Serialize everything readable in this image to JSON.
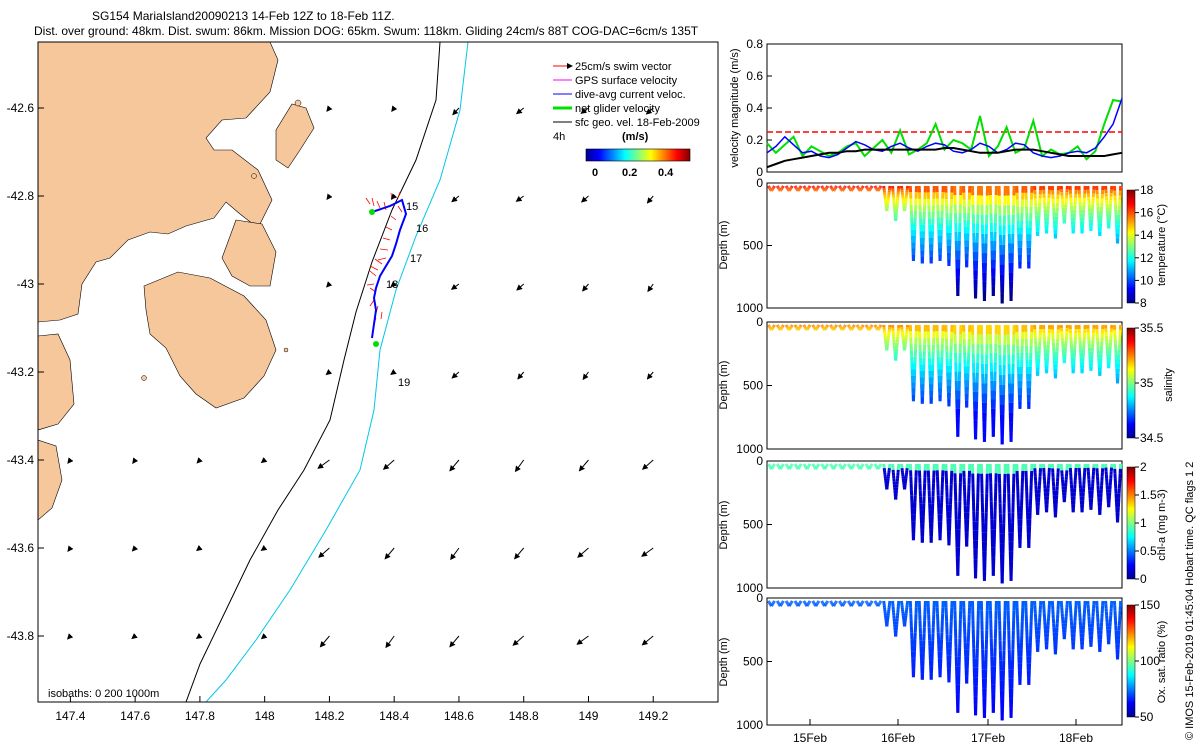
{
  "title": {
    "line1": "SG154 MariaIsland20090213 14-Feb 12Z to 18-Feb 11Z.",
    "line2": "Dist. over ground: 48km. Dist. swum: 86km. Mission DOG: 65km. Swum: 118km. Gliding 24cm/s 88T COG-DAC=6cm/s 135T"
  },
  "side_credit": "© IMOS 15-Feb-2019 01:45:04 Hobart time. QC flags 1  2",
  "colors": {
    "land": "#f7c79c",
    "isobath_200": "#000000",
    "isobath_1000": "#00c8e6",
    "swim": "#ff0000",
    "gps": "#ff00ff",
    "dac": "#0000ff",
    "net": "#00e000",
    "geo": "#000000"
  },
  "chart_data": [
    {
      "type": "scatter",
      "id": "map",
      "title": "",
      "xlim": [
        147.3,
        149.4
      ],
      "ylim": [
        -43.95,
        -42.45
      ],
      "xticks": [
        "147.4",
        "147.6",
        "147.8",
        "148",
        "148.2",
        "148.4",
        "148.6",
        "148.8",
        "149",
        "149.2"
      ],
      "yticks": [
        "-42.6",
        "-42.8",
        "-43",
        "-43.2",
        "-43.4",
        "-43.6",
        "-43.8"
      ],
      "legend": [
        {
          "label": "25cm/s swim vector"
        },
        {
          "label": "GPS surface velocity"
        },
        {
          "label": "dive-avg current veloc."
        },
        {
          "label": "net glider velocity"
        },
        {
          "label": "sfc geo. vel. 18-Feb-2009"
        }
      ],
      "legend_extra": "4h",
      "colorbar_title": "(m/s)",
      "colorbar_ticks": [
        "0",
        "0.2",
        "0.4"
      ],
      "isobaths_label": "isobaths: 0   200  1000m",
      "day_labels": [
        "15",
        "16",
        "17",
        "18",
        "19"
      ]
    },
    {
      "type": "line",
      "id": "speed",
      "ylabel": "velocity magnitude (m/s)",
      "ylim": [
        0,
        0.8
      ],
      "yticks": [
        "0",
        "0.2",
        "0.4",
        "0.6",
        "0.8"
      ],
      "threshold": 0.25,
      "x": [
        0,
        0.1,
        0.2,
        0.3,
        0.4,
        0.5,
        0.6,
        0.7,
        0.8,
        0.9,
        1.0,
        1.1,
        1.2,
        1.3,
        1.4,
        1.5,
        1.6,
        1.7,
        1.8,
        1.9,
        2.0,
        2.1,
        2.2,
        2.3,
        2.4,
        2.5,
        2.6,
        2.7,
        2.8,
        2.9,
        3.0,
        3.1,
        3.2,
        3.3,
        3.4,
        3.5,
        3.6,
        3.7,
        3.8,
        3.9,
        4.0
      ],
      "series": [
        {
          "values": [
            0.18,
            0.12,
            0.17,
            0.22,
            0.1,
            0.16,
            0.13,
            0.1,
            0.12,
            0.16,
            0.18,
            0.1,
            0.15,
            0.2,
            0.12,
            0.26,
            0.11,
            0.14,
            0.18,
            0.3,
            0.14,
            0.2,
            0.18,
            0.14,
            0.35,
            0.1,
            0.16,
            0.28,
            0.12,
            0.15,
            0.32,
            0.1,
            0.14,
            0.11,
            0.12,
            0.16,
            0.08,
            0.13,
            0.3,
            0.45,
            0.44
          ]
        },
        {
          "values": [
            0.12,
            0.16,
            0.22,
            0.17,
            0.12,
            0.13,
            0.1,
            0.09,
            0.11,
            0.15,
            0.19,
            0.17,
            0.14,
            0.13,
            0.16,
            0.18,
            0.15,
            0.13,
            0.16,
            0.18,
            0.17,
            0.13,
            0.12,
            0.14,
            0.18,
            0.16,
            0.12,
            0.14,
            0.18,
            0.17,
            0.12,
            0.1,
            0.09,
            0.1,
            0.12,
            0.13,
            0.12,
            0.15,
            0.22,
            0.3,
            0.46
          ]
        },
        {
          "values": [
            0.03,
            0.05,
            0.07,
            0.08,
            0.09,
            0.1,
            0.11,
            0.12,
            0.12,
            0.13,
            0.13,
            0.14,
            0.14,
            0.14,
            0.14,
            0.14,
            0.14,
            0.14,
            0.14,
            0.14,
            0.15,
            0.15,
            0.14,
            0.13,
            0.12,
            0.12,
            0.12,
            0.13,
            0.14,
            0.14,
            0.14,
            0.13,
            0.12,
            0.11,
            0.1,
            0.1,
            0.1,
            0.1,
            0.1,
            0.11,
            0.12
          ]
        }
      ]
    },
    {
      "type": "scatter",
      "id": "temperature",
      "ylabel": "Depth (m)",
      "ylim": [
        1000,
        0
      ],
      "yticks": [
        "0",
        "500",
        "1000"
      ],
      "clabel": "temperature (°C)",
      "cticks": [
        "8",
        "10",
        "12",
        "14",
        "16",
        "18"
      ],
      "dive_max_depth": [
        40,
        40,
        40,
        40,
        40,
        40,
        40,
        40,
        40,
        40,
        40,
        40,
        40,
        200,
        280,
        200,
        600,
        620,
        620,
        600,
        640,
        880,
        650,
        900,
        920,
        880,
        940,
        920,
        660,
        660,
        400,
        380,
        420,
        300,
        380,
        380,
        360,
        400,
        340,
        460
      ]
    },
    {
      "type": "scatter",
      "id": "salinity",
      "ylabel": "Depth (m)",
      "ylim": [
        1000,
        0
      ],
      "yticks": [
        "0",
        "500",
        "1000"
      ],
      "clabel": "salinity",
      "cticks": [
        "34.5",
        "35",
        "35.5"
      ],
      "dive_max_depth": [
        40,
        40,
        40,
        40,
        40,
        40,
        40,
        40,
        40,
        40,
        40,
        40,
        40,
        200,
        280,
        200,
        600,
        620,
        620,
        600,
        640,
        880,
        650,
        900,
        920,
        880,
        940,
        920,
        660,
        660,
        400,
        380,
        420,
        300,
        380,
        380,
        360,
        400,
        340,
        460
      ]
    },
    {
      "type": "scatter",
      "id": "chla",
      "ylabel": "Depth (m)",
      "ylim": [
        1000,
        0
      ],
      "yticks": [
        "0",
        "500",
        "1000"
      ],
      "clabel": "chl-a (mg m-3)",
      "cticks": [
        "0",
        "0.5",
        "1",
        "1.5",
        "2"
      ],
      "dive_max_depth": [
        40,
        40,
        40,
        40,
        40,
        40,
        40,
        40,
        40,
        40,
        40,
        40,
        40,
        200,
        280,
        200,
        600,
        620,
        620,
        600,
        640,
        880,
        650,
        900,
        920,
        880,
        940,
        920,
        660,
        660,
        400,
        380,
        420,
        300,
        380,
        380,
        360,
        400,
        340,
        460
      ]
    },
    {
      "type": "scatter",
      "id": "oxygen",
      "ylabel": "Depth (m)",
      "ylim": [
        1000,
        0
      ],
      "yticks": [
        "0",
        "500",
        "1000"
      ],
      "clabel": "Ox. sat. ratio (%)",
      "cticks": [
        "50",
        "100",
        "150"
      ],
      "xticks": [
        "15Feb",
        "16Feb",
        "17Feb",
        "18Feb"
      ],
      "dive_max_depth": [
        40,
        40,
        40,
        40,
        40,
        40,
        40,
        40,
        40,
        40,
        40,
        40,
        40,
        200,
        280,
        200,
        600,
        620,
        620,
        600,
        640,
        880,
        650,
        900,
        920,
        880,
        940,
        920,
        660,
        660,
        400,
        380,
        420,
        300,
        380,
        380,
        360,
        400,
        340,
        460
      ]
    }
  ]
}
